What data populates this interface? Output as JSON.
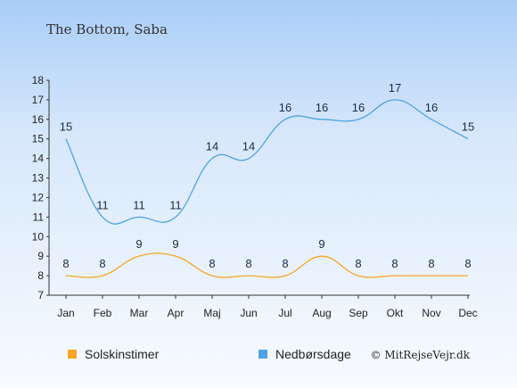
{
  "chart_data": {
    "type": "line",
    "title": "The Bottom, Saba",
    "categories": [
      "Jan",
      "Feb",
      "Mar",
      "Apr",
      "Maj",
      "Jun",
      "Jul",
      "Aug",
      "Sep",
      "Okt",
      "Nov",
      "Dec"
    ],
    "ylim": [
      7,
      18
    ],
    "yticks": [
      7,
      8,
      9,
      10,
      11,
      12,
      13,
      14,
      15,
      16,
      17,
      18
    ],
    "series": [
      {
        "name": "Solskinstimer",
        "color": "#f5a623",
        "values": [
          8,
          8,
          9,
          9,
          8,
          8,
          8,
          9,
          8,
          8,
          8,
          8
        ]
      },
      {
        "name": "Nedbørsdage",
        "color": "#4fa3e0",
        "values": [
          15,
          11,
          11,
          11,
          14,
          14,
          16,
          16,
          16,
          17,
          16,
          15
        ]
      }
    ],
    "legend_position": "bottom",
    "grid": false
  },
  "footer": {
    "copyright": "© MitRejseVejr.dk"
  }
}
